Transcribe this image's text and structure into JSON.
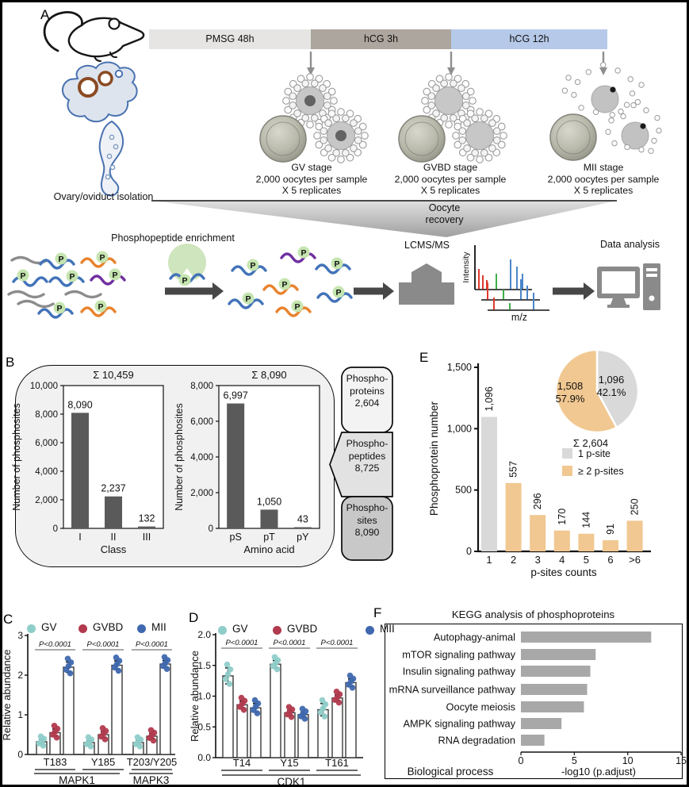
{
  "figure": {
    "panel_labels": {
      "A": "A",
      "B": "B",
      "C": "C",
      "D": "D",
      "E": "E",
      "F": "F"
    }
  },
  "panelA": {
    "timeline": [
      {
        "label": "PMSG 48h",
        "color": "#e6e5e4"
      },
      {
        "label": "hCG 3h",
        "color": "#ada69e"
      },
      {
        "label": "hCG 12h",
        "color": "#b6c9e9"
      }
    ],
    "ovary_caption": "Ovary/oviduct isolation",
    "stages": [
      {
        "title": "GV stage",
        "line2": "2,000 oocytes per sample",
        "line3": "X 5 replicates"
      },
      {
        "title": "GVBD stage",
        "line2": "2,000 oocytes per sample",
        "line3": "X 5 replicates"
      },
      {
        "title": "MII stage",
        "line2": "2,000 oocytes per sample",
        "line3": "X 5 replicates"
      }
    ],
    "funnel_label": {
      "line1": "Oocyte",
      "line2": "recovery"
    },
    "enrichment_title": "Phosphopeptide enrichment",
    "p_badge": "P",
    "lcms_label": "LCMS/MS",
    "spectrum_ylabel": "Intensity",
    "spectrum_xlabel": "m/z",
    "data_analysis_label": "Data analysis"
  },
  "panelB": {
    "side_boxes": [
      {
        "lines": [
          "Phospho-",
          "proteins",
          "2,604"
        ],
        "color": "#f3f3f3"
      },
      {
        "lines": [
          "Phospho-",
          "peptides",
          "8,725"
        ],
        "color": "#e2e2e2"
      },
      {
        "lines": [
          "Phospho-",
          "sites",
          "8,090"
        ],
        "color": "#c8c8c8"
      }
    ]
  },
  "panelE": {
    "total_label": "Σ 2,604",
    "legend": [
      {
        "label": "1 p-site",
        "color": "#d9d9d9"
      },
      {
        "label": "≥ 2 p-sites",
        "color": "#f1c891"
      }
    ]
  },
  "chart_data": [
    {
      "panel": "B",
      "id": "phosphosites-by-class",
      "type": "bar",
      "title": "Σ 10,459",
      "categories": [
        "I",
        "II",
        "III"
      ],
      "values": [
        8090,
        2237,
        132
      ],
      "value_labels": [
        "8,090",
        "2,237",
        "132"
      ],
      "xlabel": "Class",
      "ylabel": "Number of phosphosites",
      "ylim": [
        0,
        10000
      ],
      "yticks": [
        0,
        2000,
        4000,
        6000,
        8000,
        10000
      ],
      "ytick_labels": [
        "0",
        "2,000",
        "4,000",
        "6,000",
        "8,000",
        "10,000"
      ],
      "bar_color": "#5a5a5a",
      "grid": false
    },
    {
      "panel": "B",
      "id": "phosphosites-by-amino-acid",
      "type": "bar",
      "title": "Σ 8,090",
      "categories": [
        "pS",
        "pT",
        "pY"
      ],
      "values": [
        6997,
        1050,
        43
      ],
      "value_labels": [
        "6,997",
        "1,050",
        "43"
      ],
      "xlabel": "Amino acid",
      "ylabel": "Number of phosphosites",
      "ylim": [
        0,
        8000
      ],
      "yticks": [
        0,
        2000,
        4000,
        6000,
        8000
      ],
      "ytick_labels": [
        "0",
        "2,000",
        "4,000",
        "6,000",
        "8,000"
      ],
      "bar_color": "#5a5a5a",
      "grid": false
    },
    {
      "panel": "E",
      "id": "phosphoprotein-psite-counts",
      "type": "bar",
      "categories": [
        "1",
        "2",
        "3",
        "4",
        "5",
        "6",
        ">6"
      ],
      "values": [
        1096,
        557,
        296,
        170,
        144,
        91,
        250
      ],
      "value_labels": [
        "1,096",
        "557",
        "296",
        "170",
        "144",
        "91",
        "250"
      ],
      "xlabel": "p-sites counts",
      "ylabel": "Phosphoprotein number",
      "ylim": [
        0,
        1500
      ],
      "yticks": [
        0,
        500,
        1000,
        1500
      ],
      "ytick_labels": [
        "0",
        "500",
        "1,000",
        "1,500"
      ],
      "bar_colors": [
        "#d9d9d9",
        "#f1c891",
        "#f1c891",
        "#f1c891",
        "#f1c891",
        "#f1c891",
        "#f1c891"
      ],
      "grid": false
    },
    {
      "panel": "E",
      "id": "psite-pie",
      "type": "pie",
      "total_label": "Σ 2,604",
      "start_angle_deg": 0,
      "slices": [
        {
          "label": "1 p-site",
          "value": 1096,
          "pct": 42.1,
          "lines": [
            "1,096",
            "42.1%"
          ],
          "color": "#d9d9d9"
        },
        {
          "label": "≥ 2 p-sites",
          "value": 1508,
          "pct": 57.9,
          "lines": [
            "1,508",
            "57.9%"
          ],
          "color": "#f1c891"
        }
      ]
    },
    {
      "panel": "C",
      "id": "mapk-relative-abundance",
      "type": "grouped_bar_dots",
      "ylabel": "Relative abundance",
      "ylim": [
        0,
        3
      ],
      "yticks": [
        0,
        1,
        2,
        3
      ],
      "ytick_labels": [
        "0",
        "1",
        "2",
        "3"
      ],
      "series": [
        "GV",
        "GVBD",
        "MII"
      ],
      "series_colors": [
        "#8fcdc9",
        "#b23a4e",
        "#3f68ae"
      ],
      "replicates": 5,
      "groups": [
        {
          "site": "T183",
          "gene": "MAPK1",
          "values": [
            0.32,
            0.55,
            2.2
          ],
          "errors": [
            0.05,
            0.09,
            0.13
          ],
          "p_label": "P<0.0001"
        },
        {
          "site": "Y185",
          "gene": "MAPK1",
          "values": [
            0.3,
            0.5,
            2.25
          ],
          "errors": [
            0.05,
            0.08,
            0.11
          ],
          "p_label": "P<0.0001"
        },
        {
          "site": "T203/Y205",
          "gene": "MAPK3",
          "values": [
            0.3,
            0.46,
            2.28
          ],
          "errors": [
            0.05,
            0.07,
            0.09
          ],
          "p_label": "P<0.0001"
        }
      ],
      "gene_labels": [
        "MAPK1",
        "MAPK3"
      ]
    },
    {
      "panel": "D",
      "id": "cdk1-relative-abundance",
      "type": "grouped_bar_dots",
      "ylabel": "Relative abundance",
      "ylim": [
        0,
        2
      ],
      "yticks": [
        0,
        0.5,
        1,
        1.5,
        2
      ],
      "ytick_labels": [
        "0.0",
        "0.5",
        "1.0",
        "1.5",
        "2.0"
      ],
      "series": [
        "GV",
        "GVBD",
        "MII"
      ],
      "series_colors": [
        "#8fcdc9",
        "#b23a4e",
        "#3f68ae"
      ],
      "replicates": 5,
      "groups": [
        {
          "site": "T14",
          "gene": "CDK1",
          "values": [
            1.33,
            0.86,
            0.81
          ],
          "errors": [
            0.13,
            0.06,
            0.07
          ],
          "p_label": "P<0.0001"
        },
        {
          "site": "Y15",
          "gene": "CDK1",
          "values": [
            1.52,
            0.73,
            0.7
          ],
          "errors": [
            0.06,
            0.04,
            0.04
          ],
          "p_label": "P<0.0001"
        },
        {
          "site": "T161",
          "gene": "CDK1",
          "values": [
            0.78,
            0.97,
            1.22
          ],
          "errors": [
            0.1,
            0.05,
            0.06
          ],
          "p_label": "P<0.0001"
        }
      ],
      "gene_labels": [
        "CDK1"
      ]
    },
    {
      "panel": "F",
      "id": "kegg-phosphoproteins",
      "type": "hbar",
      "title": "KEGG analysis of phosphoproteins",
      "categories": [
        "Autophagy-animal",
        "mTOR signaling pathway",
        "Insulin signaling pathway",
        "mRNA surveillance pathway",
        "Oocyte meiosis",
        "AMPK signaling pathway",
        "RNA degradation"
      ],
      "values": [
        12.2,
        7.0,
        6.5,
        6.2,
        5.9,
        3.8,
        2.2
      ],
      "xlabel": "-log10 (p.adjust)",
      "ylabel": "Biological process",
      "xlim": [
        0,
        15
      ],
      "xticks": [
        0,
        5,
        10,
        15
      ],
      "xtick_labels": [
        "0",
        "5",
        "10",
        "15"
      ],
      "bar_color": "#a8a8a8",
      "grid": false
    }
  ]
}
